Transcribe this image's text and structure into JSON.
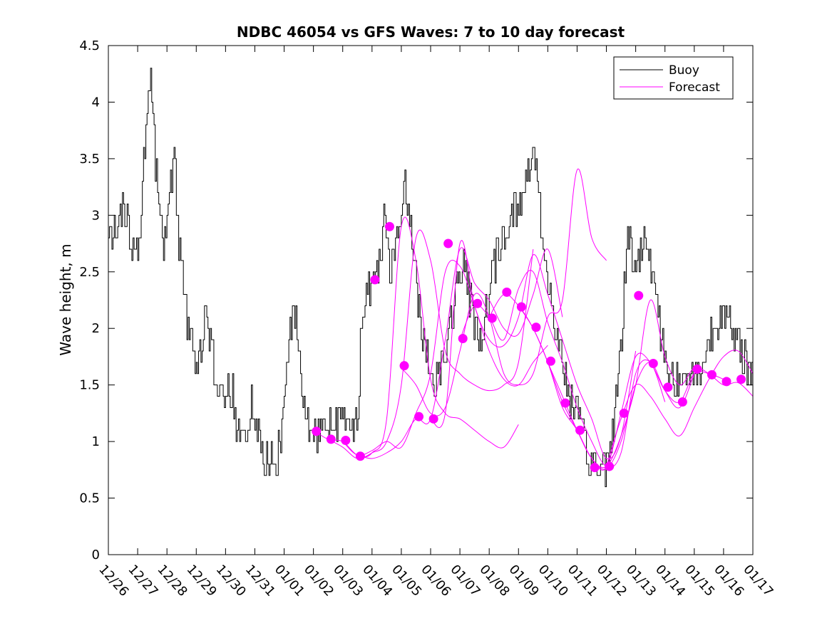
{
  "chart_data": {
    "type": "line",
    "title": "NDBC 46054 vs GFS Waves: 7 to 10 day forecast",
    "xlabel": "",
    "ylabel": "Wave height, m",
    "ylim": [
      0,
      4.5
    ],
    "yticks": [
      0,
      0.5,
      1,
      1.5,
      2,
      2.5,
      3,
      3.5,
      4,
      4.5
    ],
    "ytick_labels": [
      "0",
      "0.5",
      "1",
      "1.5",
      "2",
      "2.5",
      "3",
      "3.5",
      "4",
      "4.5"
    ],
    "xlim_days": [
      0,
      22
    ],
    "xtick_labels": [
      "12/26",
      "12/27",
      "12/28",
      "12/29",
      "12/30",
      "12/31",
      "01/01",
      "01/02",
      "01/03",
      "01/04",
      "01/05",
      "01/06",
      "01/07",
      "01/08",
      "01/09",
      "01/10",
      "01/11",
      "01/12",
      "01/13",
      "01/14",
      "01/15",
      "01/16",
      "01/17"
    ],
    "legend": {
      "placement": "top-right",
      "entries": [
        {
          "name": "Buoy",
          "color": "#000000"
        },
        {
          "name": "Forecast",
          "color": "#ff00ff"
        }
      ]
    },
    "buoy_anchors": [
      [
        0,
        2.75
      ],
      [
        0.15,
        2.85
      ],
      [
        0.3,
        3.0
      ],
      [
        0.5,
        3.05
      ],
      [
        0.65,
        2.9
      ],
      [
        0.8,
        2.7
      ],
      [
        0.9,
        2.6
      ],
      [
        1.0,
        2.75
      ],
      [
        1.1,
        3.0
      ],
      [
        1.2,
        3.5
      ],
      [
        1.3,
        3.85
      ],
      [
        1.4,
        4.1
      ],
      [
        1.45,
        4.35
      ],
      [
        1.5,
        3.95
      ],
      [
        1.6,
        3.5
      ],
      [
        1.7,
        3.15
      ],
      [
        1.8,
        2.9
      ],
      [
        1.9,
        2.75
      ],
      [
        2.0,
        3.0
      ],
      [
        2.1,
        3.2
      ],
      [
        2.2,
        3.45
      ],
      [
        2.25,
        3.6
      ],
      [
        2.3,
        3.2
      ],
      [
        2.4,
        2.7
      ],
      [
        2.5,
        2.5
      ],
      [
        2.6,
        2.3
      ],
      [
        2.7,
        2.05
      ],
      [
        2.8,
        1.9
      ],
      [
        2.9,
        1.8
      ],
      [
        3.0,
        1.7
      ],
      [
        3.1,
        1.75
      ],
      [
        3.2,
        1.9
      ],
      [
        3.3,
        2.1
      ],
      [
        3.4,
        2.05
      ],
      [
        3.5,
        1.8
      ],
      [
        3.6,
        1.6
      ],
      [
        3.7,
        1.5
      ],
      [
        3.8,
        1.45
      ],
      [
        3.9,
        1.4
      ],
      [
        4.0,
        1.45
      ],
      [
        4.1,
        1.5
      ],
      [
        4.2,
        1.45
      ],
      [
        4.3,
        1.3
      ],
      [
        4.4,
        1.15
      ],
      [
        4.5,
        1.1
      ],
      [
        4.6,
        1.05
      ],
      [
        4.7,
        1.15
      ],
      [
        4.8,
        1.25
      ],
      [
        4.9,
        1.3
      ],
      [
        5.0,
        1.2
      ],
      [
        5.1,
        1.05
      ],
      [
        5.2,
        0.95
      ],
      [
        5.3,
        0.85
      ],
      [
        5.4,
        0.8
      ],
      [
        5.5,
        0.9
      ],
      [
        5.6,
        0.95
      ],
      [
        5.7,
        0.85
      ],
      [
        5.8,
        0.9
      ],
      [
        5.9,
        1.1
      ],
      [
        6.0,
        1.5
      ],
      [
        6.1,
        1.8
      ],
      [
        6.2,
        2.0
      ],
      [
        6.3,
        2.1
      ],
      [
        6.4,
        2.05
      ],
      [
        6.5,
        1.8
      ],
      [
        6.6,
        1.45
      ],
      [
        6.7,
        1.25
      ],
      [
        6.8,
        1.15
      ],
      [
        6.9,
        1.1
      ],
      [
        7.0,
        1.05
      ],
      [
        7.2,
        1.1
      ],
      [
        7.4,
        1.15
      ],
      [
        7.6,
        1.2
      ],
      [
        7.8,
        1.2
      ],
      [
        8.0,
        1.2
      ],
      [
        8.2,
        1.15
      ],
      [
        8.4,
        1.2
      ],
      [
        8.5,
        1.3
      ],
      [
        8.6,
        1.8
      ],
      [
        8.7,
        2.1
      ],
      [
        8.8,
        2.3
      ],
      [
        9.0,
        2.4
      ],
      [
        9.2,
        2.6
      ],
      [
        9.35,
        2.85
      ],
      [
        9.45,
        3.15
      ],
      [
        9.5,
        2.8
      ],
      [
        9.6,
        2.5
      ],
      [
        9.8,
        2.7
      ],
      [
        10.0,
        3.0
      ],
      [
        10.1,
        3.25
      ],
      [
        10.2,
        3.05
      ],
      [
        10.35,
        2.85
      ],
      [
        10.5,
        2.4
      ],
      [
        10.7,
        2.0
      ],
      [
        10.9,
        1.7
      ],
      [
        11.1,
        1.55
      ],
      [
        11.3,
        1.65
      ],
      [
        11.5,
        1.8
      ],
      [
        11.7,
        2.1
      ],
      [
        11.9,
        2.35
      ],
      [
        12.1,
        2.6
      ],
      [
        12.2,
        2.45
      ],
      [
        12.4,
        2.15
      ],
      [
        12.6,
        1.95
      ],
      [
        12.8,
        2.0
      ],
      [
        13.0,
        2.3
      ],
      [
        13.2,
        2.6
      ],
      [
        13.4,
        2.75
      ],
      [
        13.6,
        2.9
      ],
      [
        13.8,
        3.05
      ],
      [
        14.0,
        3.05
      ],
      [
        14.2,
        3.2
      ],
      [
        14.4,
        3.45
      ],
      [
        14.5,
        3.6
      ],
      [
        14.6,
        3.5
      ],
      [
        14.7,
        3.2
      ],
      [
        14.8,
        2.8
      ],
      [
        15.0,
        2.4
      ],
      [
        15.2,
        2.1
      ],
      [
        15.4,
        1.8
      ],
      [
        15.6,
        1.55
      ],
      [
        15.8,
        1.35
      ],
      [
        16.0,
        1.2
      ],
      [
        16.2,
        1.0
      ],
      [
        16.4,
        0.85
      ],
      [
        16.6,
        0.78
      ],
      [
        16.8,
        0.75
      ],
      [
        17.0,
        0.8
      ],
      [
        17.1,
        0.95
      ],
      [
        17.3,
        1.3
      ],
      [
        17.5,
        1.85
      ],
      [
        17.6,
        2.3
      ],
      [
        17.7,
        2.75
      ],
      [
        17.8,
        2.8
      ],
      [
        17.9,
        2.6
      ],
      [
        18.1,
        2.55
      ],
      [
        18.2,
        2.7
      ],
      [
        18.35,
        2.85
      ],
      [
        18.5,
        2.6
      ],
      [
        18.7,
        2.3
      ],
      [
        18.9,
        1.85
      ],
      [
        19.1,
        1.65
      ],
      [
        19.3,
        1.6
      ],
      [
        19.5,
        1.5
      ],
      [
        19.7,
        1.55
      ],
      [
        19.9,
        1.65
      ],
      [
        20.1,
        1.55
      ],
      [
        20.3,
        1.7
      ],
      [
        20.5,
        1.9
      ],
      [
        20.7,
        2.0
      ],
      [
        20.9,
        2.2
      ],
      [
        21.1,
        2.1
      ],
      [
        21.3,
        1.9
      ],
      [
        21.5,
        1.85
      ],
      [
        21.7,
        1.75
      ],
      [
        21.9,
        1.6
      ],
      [
        22.0,
        1.55
      ]
    ],
    "forecast_series": [
      {
        "x": [
          7.0,
          7.5,
          8.0,
          8.5,
          9.0,
          9.5,
          10.0,
          10.5,
          11.0,
          11.5,
          12.0,
          12.5,
          13.0,
          13.5,
          14.0
        ],
        "y": [
          1.1,
          1.02,
          1.0,
          0.88,
          0.9,
          1.2,
          2.9,
          2.6,
          1.55,
          1.25,
          1.2,
          1.1,
          1.0,
          0.95,
          1.15
        ]
      },
      {
        "x": [
          7.5,
          8.0,
          8.5,
          9.0,
          9.5,
          10.0,
          10.5,
          11.0,
          11.5,
          12.0,
          12.5,
          13.0,
          13.5,
          14.0,
          14.5
        ],
        "y": [
          1.02,
          0.95,
          0.85,
          0.9,
          1.0,
          1.5,
          2.8,
          2.6,
          1.8,
          1.6,
          1.5,
          1.45,
          1.5,
          1.7,
          2.7
        ]
      },
      {
        "x": [
          8.0,
          8.5,
          9.0,
          9.5,
          10.0,
          10.5,
          11.0,
          11.5,
          12.0,
          12.5,
          13.0,
          13.5,
          14.0,
          14.5,
          15.0
        ],
        "y": [
          1.0,
          0.88,
          0.92,
          1.0,
          0.95,
          1.25,
          1.6,
          2.5,
          2.55,
          2.2,
          1.8,
          1.55,
          1.5,
          1.7,
          1.85
        ]
      },
      {
        "x": [
          8.5,
          9.0,
          9.5,
          10.0,
          10.5,
          11.0,
          11.5,
          12.0,
          12.5,
          13.0,
          13.5,
          14.0,
          14.5,
          15.0,
          15.5
        ],
        "y": [
          0.88,
          0.85,
          0.9,
          1.0,
          1.2,
          1.2,
          1.9,
          2.7,
          2.4,
          2.25,
          2.0,
          1.95,
          2.3,
          2.7,
          2.1
        ]
      },
      {
        "x": [
          10.0,
          10.5,
          11.0,
          11.5,
          12.0,
          12.5,
          13.0,
          13.5,
          14.0,
          14.5,
          15.0,
          15.5,
          16.0,
          16.5,
          17.0
        ],
        "y": [
          1.65,
          1.5,
          1.25,
          1.3,
          1.8,
          2.3,
          2.1,
          1.6,
          1.5,
          1.6,
          2.1,
          2.25,
          3.4,
          2.8,
          2.6
        ]
      },
      {
        "x": [
          11.0,
          11.5,
          12.0,
          12.5,
          13.0,
          13.5,
          14.0,
          14.5,
          15.0,
          15.5,
          16.0,
          16.5,
          17.0,
          17.5,
          18.0
        ],
        "y": [
          1.2,
          1.25,
          2.75,
          2.2,
          1.9,
          1.85,
          2.1,
          2.65,
          2.3,
          1.9,
          1.5,
          1.2,
          0.85,
          1.05,
          1.8
        ]
      },
      {
        "x": [
          12.0,
          12.5,
          13.0,
          13.5,
          14.0,
          14.5,
          15.0,
          15.5,
          16.0,
          16.5,
          17.0,
          17.5,
          18.0,
          18.5,
          19.0
        ],
        "y": [
          1.9,
          2.2,
          2.1,
          1.9,
          2.35,
          2.5,
          2.05,
          1.7,
          1.3,
          1.0,
          0.78,
          0.9,
          1.6,
          1.7,
          1.35
        ]
      },
      {
        "x": [
          13.0,
          13.5,
          14.0,
          14.5,
          15.0,
          15.5,
          16.0,
          16.5,
          17.0,
          17.5,
          18.0,
          18.5,
          19.0,
          19.5,
          20.0
        ],
        "y": [
          2.1,
          2.3,
          2.2,
          2.0,
          1.7,
          1.3,
          1.1,
          0.85,
          0.76,
          1.0,
          1.5,
          1.7,
          1.45,
          1.3,
          1.6
        ]
      },
      {
        "x": [
          14.0,
          14.5,
          15.0,
          15.5,
          16.0,
          16.5,
          17.0,
          17.5,
          18.0,
          18.5,
          19.0,
          19.5,
          20.0,
          20.5,
          21.0
        ],
        "y": [
          2.2,
          2.0,
          1.7,
          1.35,
          1.1,
          0.85,
          0.77,
          1.25,
          1.75,
          1.7,
          1.45,
          1.35,
          1.6,
          1.6,
          1.55
        ]
      },
      {
        "x": [
          15.0,
          15.5,
          16.0,
          16.5,
          17.0,
          17.5,
          18.0,
          18.5,
          19.0,
          19.5,
          20.0,
          20.5,
          21.0,
          21.5,
          22.0
        ],
        "y": [
          1.7,
          1.4,
          1.1,
          0.85,
          0.78,
          1.05,
          1.5,
          2.25,
          1.75,
          1.5,
          1.65,
          1.6,
          1.5,
          1.52,
          1.4
        ]
      },
      {
        "x": [
          17.0,
          17.5,
          18.0,
          18.5,
          19.0,
          19.5,
          20.0,
          20.5,
          21.0,
          21.5,
          22.0
        ],
        "y": [
          0.78,
          1.2,
          1.5,
          1.4,
          1.2,
          1.05,
          1.3,
          1.55,
          1.75,
          1.8,
          1.6
        ]
      }
    ],
    "forecast_markers": [
      [
        7.1,
        1.09
      ],
      [
        7.6,
        1.02
      ],
      [
        8.1,
        1.01
      ],
      [
        8.6,
        0.87
      ],
      [
        9.1,
        2.43
      ],
      [
        9.6,
        2.9
      ],
      [
        10.1,
        1.67
      ],
      [
        10.6,
        1.22
      ],
      [
        11.1,
        1.2
      ],
      [
        11.6,
        2.75
      ],
      [
        12.1,
        1.91
      ],
      [
        12.6,
        2.22
      ],
      [
        13.1,
        2.09
      ],
      [
        13.6,
        2.32
      ],
      [
        14.1,
        2.19
      ],
      [
        14.6,
        2.01
      ],
      [
        15.1,
        1.71
      ],
      [
        15.6,
        1.34
      ],
      [
        16.1,
        1.1
      ],
      [
        16.6,
        0.77
      ],
      [
        17.1,
        0.78
      ],
      [
        17.6,
        1.25
      ],
      [
        18.1,
        2.29
      ],
      [
        18.6,
        1.69
      ],
      [
        19.1,
        1.48
      ],
      [
        19.6,
        1.35
      ],
      [
        20.1,
        1.64
      ],
      [
        20.6,
        1.59
      ],
      [
        21.1,
        1.53
      ],
      [
        21.6,
        1.55
      ]
    ]
  }
}
